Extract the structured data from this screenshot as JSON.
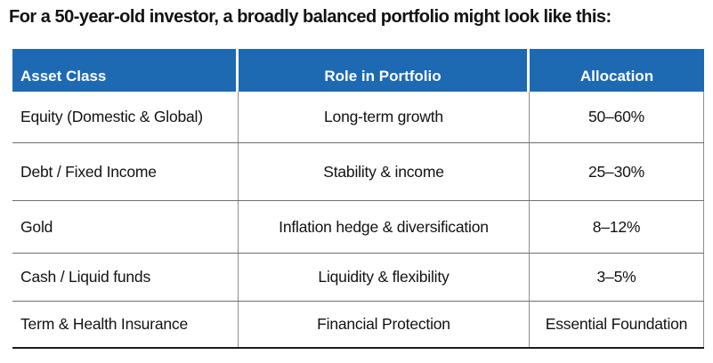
{
  "title": "For a 50-year-old investor, a broadly balanced portfolio might look like this:",
  "chart_data": {
    "type": "table",
    "title": "For a 50-year-old investor, a broadly balanced portfolio might look like this:",
    "columns": [
      "Asset Class",
      "Role in Portfolio",
      "Allocation"
    ],
    "rows": [
      [
        "Equity (Domestic & Global)",
        "Long-term growth",
        "50–60%"
      ],
      [
        "Debt / Fixed Income",
        "Stability & income",
        "25–30%"
      ],
      [
        "Gold",
        "Inflation hedge & diversification",
        "8–12%"
      ],
      [
        "Cash / Liquid funds",
        "Liquidity & flexibility",
        "3–5%"
      ],
      [
        "Term & Health Insurance",
        "Financial Protection",
        "Essential Foundation"
      ]
    ]
  },
  "colors": {
    "header_bg": "#1d6ab3",
    "header_text": "#ffffff",
    "v_line": "#909090",
    "h_line": "#6f6f6f",
    "bottom_line": "#1c1c1c",
    "text": "#121212",
    "page_bg": "#ffffff"
  }
}
